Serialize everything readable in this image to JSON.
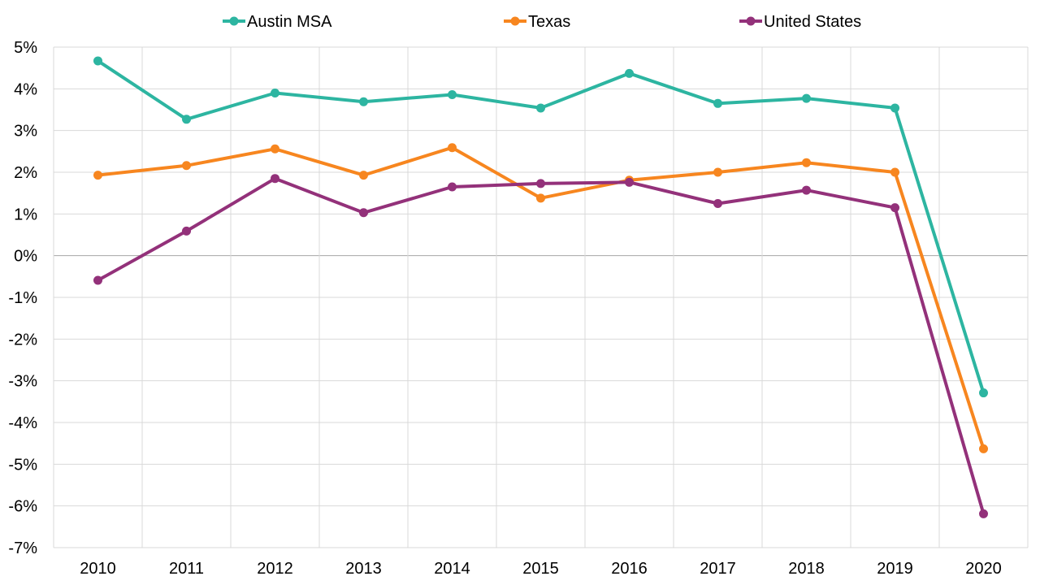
{
  "chart_data": {
    "type": "line",
    "title": "",
    "xlabel": "",
    "ylabel": "",
    "categories": [
      "2010",
      "2011",
      "2012",
      "2013",
      "2014",
      "2015",
      "2016",
      "2017",
      "2018",
      "2019",
      "2020"
    ],
    "y_ticks": [
      "5%",
      "4%",
      "3%",
      "2%",
      "1%",
      "0%",
      "-1%",
      "-2%",
      "-3%",
      "-4%",
      "-5%",
      "-6%",
      "-7%"
    ],
    "ylim": [
      -7,
      5
    ],
    "grid": true,
    "legend_position": "top-center",
    "series": [
      {
        "name": "Austin MSA",
        "color": "#2db5a1",
        "values": [
          4.67,
          3.27,
          3.9,
          3.69,
          3.86,
          3.54,
          4.37,
          3.65,
          3.77,
          3.54,
          -3.29
        ]
      },
      {
        "name": "Texas",
        "color": "#f7861f",
        "values": [
          1.93,
          2.16,
          2.56,
          1.93,
          2.59,
          1.38,
          1.81,
          2.0,
          2.23,
          2.0,
          -4.63
        ]
      },
      {
        "name": "United States",
        "color": "#93317a",
        "values": [
          -0.59,
          0.59,
          1.85,
          1.03,
          1.65,
          1.73,
          1.76,
          1.25,
          1.57,
          1.15,
          -6.19
        ]
      }
    ]
  }
}
